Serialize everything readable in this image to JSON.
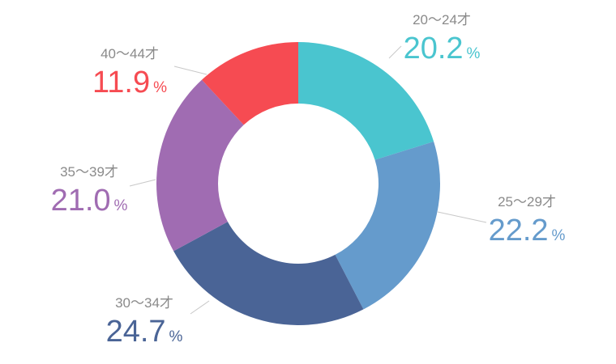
{
  "chart_data": {
    "type": "pie",
    "variant": "donut",
    "title": "",
    "categories": [
      "20～24才",
      "25～29才",
      "30～34才",
      "35～39才",
      "40～44才"
    ],
    "values": [
      20.2,
      22.2,
      24.7,
      21.0,
      11.9
    ],
    "value_labels": [
      "20.2",
      "22.2",
      "24.7",
      "21.0",
      "11.9"
    ],
    "unit": "%",
    "colors": [
      "#4ac5cf",
      "#659bcc",
      "#4a6496",
      "#a06cb2",
      "#f64b52"
    ],
    "start_angle_deg": 0,
    "direction": "clockwise",
    "legend": "none"
  }
}
